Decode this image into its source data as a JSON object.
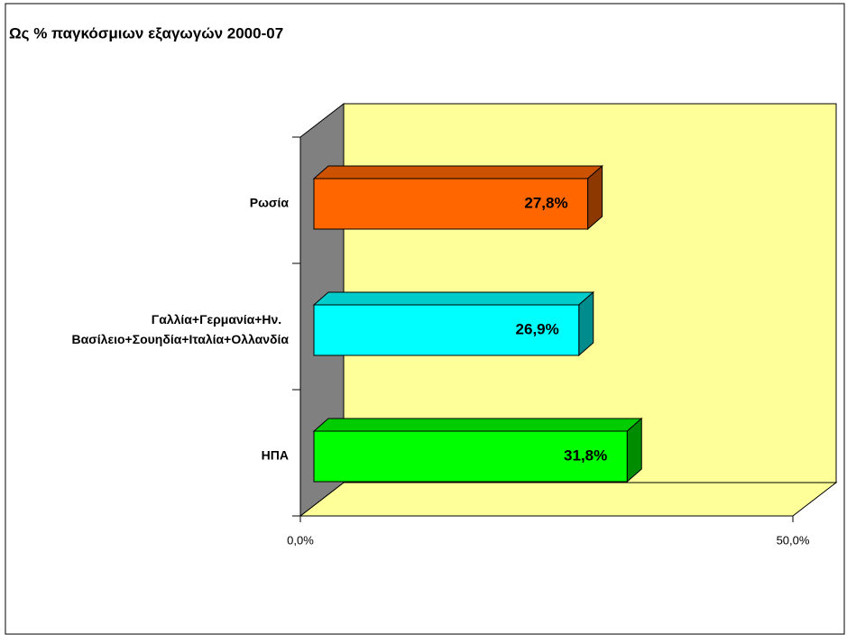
{
  "chart_data": {
    "type": "bar3d_horizontal",
    "title": "Ως % παγκόσμιων εξαγωγών 2000-07",
    "categories": [
      "Ρωσία",
      "Γαλλία+Γερμανία+Ην. Βασίλειο+Σουηδία+Ιταλία+Ολλανδία",
      "ΗΠΑ"
    ],
    "values": [
      27.8,
      26.9,
      31.8
    ],
    "value_labels": [
      "27,8%",
      "26,9%",
      "31,8%"
    ],
    "colors": [
      "#ff6600",
      "#00ffff",
      "#00ff00"
    ],
    "xlim": [
      0,
      50
    ],
    "xticks": [
      {
        "value": 0,
        "label": "0,0%"
      },
      {
        "value": 50,
        "label": "50,0%"
      }
    ],
    "grid": false
  }
}
